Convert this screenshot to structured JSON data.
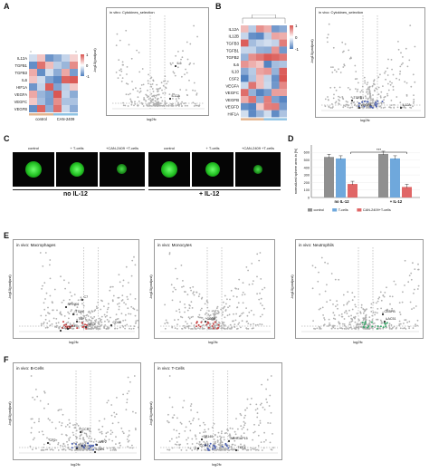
{
  "panels": {
    "A": {
      "letter": "A",
      "heatmap_rows": [
        "IL12A",
        "TGFB1",
        "TGFB3",
        "IL6",
        "HIF1A",
        "VEGFA",
        "VEGFC",
        "VEGFB"
      ],
      "heatmap_cols": [
        "control",
        "CAN-2409"
      ],
      "legend_ticks": [
        "1",
        "0",
        "-1"
      ],
      "volcano_title": "in vitro: Cytokines_selection",
      "volcano_labels": [
        "IL6",
        "IL12A"
      ],
      "xlabel": "log2fc",
      "ylabel": "-log10(padjust)"
    },
    "B": {
      "letter": "B",
      "heatmap_rows": [
        "IL12A",
        "IL12B",
        "TGFB3",
        "TGFB1",
        "TGFB2",
        "IL6",
        "IL10",
        "CSF2",
        "VEGFA",
        "VEGFC",
        "VEGFB",
        "VEGFD",
        "HIF1A"
      ],
      "heatmap_cols": [
        "control",
        "CAN-2409"
      ],
      "legend_ticks": [
        "1",
        "0",
        "-1"
      ],
      "volcano_title": "in vivo: Cytokines_selection",
      "volcano_labels": [
        "VEGFA",
        "IL12A",
        "TGFB1"
      ],
      "xlabel": "log2fc",
      "ylabel": "-log10(padjust)"
    },
    "C": {
      "letter": "C",
      "conditions_left": [
        "control",
        "+ T-cells",
        "+CAN-2409 +T-cells"
      ],
      "conditions_right": [
        "control",
        "+ T-cells",
        "+CAN-2409 +T-cells"
      ],
      "group_left": "no IL-12",
      "group_right": "+ IL-12"
    },
    "D": {
      "letter": "D",
      "ylabel": "normalized sphere area in [%]",
      "groups": [
        "no IL-12",
        "+ IL-12"
      ],
      "significance": "***",
      "legend": [
        "control",
        "T-cells",
        "CAN-2409+T-cells"
      ],
      "yticks": [
        "0",
        "100",
        "200",
        "300",
        "400",
        "500",
        "600"
      ]
    },
    "E": {
      "letter": "E",
      "titles": [
        "in vivo: Macrophages",
        "in vivo: Monocytes",
        "in vivo: Neutrophils"
      ],
      "labels_macro": [
        "C7",
        "SPINK6",
        "ITGA6",
        "TCF7",
        "CD44",
        "GCF",
        "CCL27",
        "SCL2"
      ],
      "labels_mono": [
        "CD38"
      ],
      "labels_neutro": [
        "CEBPB",
        "LAC51"
      ],
      "xlabel": "log2fc",
      "ylabel": "-log10(padjust)"
    },
    "F": {
      "letter": "F",
      "titles": [
        "in vivo: B-Cells",
        "in vivo: T-Cells"
      ],
      "labels_b": [
        "CCR7",
        "CP2",
        "APP2",
        "FBL1",
        "LRP1"
      ],
      "labels_t": [
        "SP140",
        "ARHGAP15",
        "CCR4",
        "TCF7"
      ],
      "xlabel": "log2fc",
      "ylabel": "-log10(padjust)"
    }
  },
  "chart_data": [
    {
      "type": "bar",
      "panel": "D",
      "categories": [
        "no IL-12",
        "+ IL-12"
      ],
      "series": [
        {
          "name": "control",
          "values": [
            540,
            580
          ]
        },
        {
          "name": "T-cells",
          "values": [
            520,
            520
          ]
        },
        {
          "name": "CAN-2409+T-cells",
          "values": [
            180,
            140
          ]
        }
      ],
      "ylabel": "normalized sphere area in [%]",
      "ylim": [
        0,
        700
      ],
      "colors": [
        "#8f8f8f",
        "#6fa8dc",
        "#e06666"
      ],
      "legend_position": "bottom"
    }
  ],
  "colors": {
    "heat_pos": "#d9534f",
    "heat_neg": "#4f7fbf",
    "point_gray": "#b0b0b0",
    "point_red": "#c94343",
    "point_blue": "#4a5fb0",
    "sphere": "#2ecc40"
  }
}
